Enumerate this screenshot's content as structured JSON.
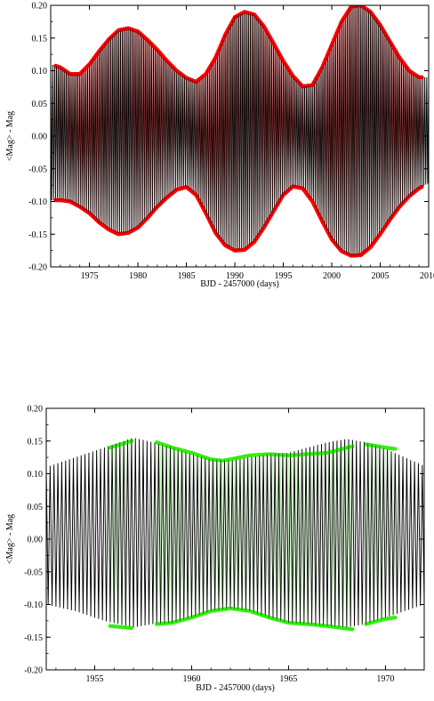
{
  "chart_data": [
    {
      "type": "scatter",
      "xlabel": "BJD - 2457000 (days)",
      "ylabel": "<Mag> - Mag",
      "xlim": [
        1971,
        2010
      ],
      "ylim": [
        -0.2,
        0.2
      ],
      "x_ticks": [
        1975,
        1980,
        1985,
        1990,
        1995,
        2000,
        2005,
        2010
      ],
      "x_tick_labels": [
        "1975",
        "1980",
        "1985",
        "1990",
        "1995",
        "2000",
        "2005",
        "2010"
      ],
      "y_ticks": [
        -0.2,
        -0.15,
        -0.1,
        -0.05,
        0.0,
        0.05,
        0.1,
        0.15,
        0.2
      ],
      "y_tick_labels": [
        "-0.20",
        "-0.15",
        "-0.10",
        "-0.05",
        "0.00",
        "0.05",
        "0.10",
        "0.15",
        "0.20"
      ],
      "grid": false,
      "series": [
        {
          "role": "model",
          "color": "#000000",
          "cycle_days": 0.2,
          "span": [
            1971,
            2010
          ],
          "upper_envelope": {
            "x": [
              1971,
              1972,
              1973,
              1974,
              1975,
              1976,
              1977,
              1978,
              1979,
              1980,
              1981,
              1982,
              1983,
              1984,
              1985,
              1986,
              1987,
              1988,
              1989,
              1990,
              1991,
              1992,
              1993,
              1994,
              1995,
              1996,
              1997,
              1998,
              1999,
              2000,
              2001,
              2002,
              2003,
              2004,
              2005,
              2006,
              2007,
              2008,
              2009,
              2010
            ],
            "y": [
              0.11,
              0.105,
              0.095,
              0.095,
              0.11,
              0.13,
              0.148,
              0.162,
              0.165,
              0.16,
              0.147,
              0.132,
              0.115,
              0.1,
              0.089,
              0.083,
              0.095,
              0.12,
              0.155,
              0.182,
              0.19,
              0.186,
              0.168,
              0.142,
              0.115,
              0.092,
              0.076,
              0.078,
              0.105,
              0.14,
              0.175,
              0.198,
              0.2,
              0.19,
              0.17,
              0.145,
              0.12,
              0.1,
              0.09,
              0.09
            ]
          },
          "lower_envelope": {
            "x": [
              1971,
              1972,
              1973,
              1974,
              1975,
              1976,
              1977,
              1978,
              1979,
              1980,
              1981,
              1982,
              1983,
              1984,
              1985,
              1986,
              1987,
              1988,
              1989,
              1990,
              1991,
              1992,
              1993,
              1994,
              1995,
              1996,
              1997,
              1998,
              1999,
              2000,
              2001,
              2002,
              2003,
              2004,
              2005,
              2006,
              2007,
              2008,
              2009,
              2010
            ],
            "y": [
              -0.098,
              -0.098,
              -0.1,
              -0.108,
              -0.118,
              -0.132,
              -0.143,
              -0.15,
              -0.148,
              -0.14,
              -0.125,
              -0.108,
              -0.094,
              -0.082,
              -0.078,
              -0.09,
              -0.118,
              -0.148,
              -0.167,
              -0.175,
              -0.174,
              -0.162,
              -0.14,
              -0.115,
              -0.09,
              -0.077,
              -0.08,
              -0.1,
              -0.13,
              -0.158,
              -0.176,
              -0.183,
              -0.182,
              -0.17,
              -0.15,
              -0.128,
              -0.108,
              -0.092,
              -0.08,
              -0.072
            ]
          }
        },
        {
          "role": "observed",
          "color": "#ff0000",
          "span": [
            1971.5,
            2009.3
          ],
          "sample_days": 0.5,
          "upper_envelope": "same as model",
          "lower_envelope": "same as model"
        }
      ]
    },
    {
      "type": "scatter",
      "xlabel": "BJD - 2457000 (days)",
      "ylabel": "<Mag> - Mag",
      "xlim": [
        1952.5,
        1972
      ],
      "ylim": [
        -0.2,
        0.2
      ],
      "x_ticks": [
        1955,
        1960,
        1965,
        1970
      ],
      "x_tick_labels": [
        "1955",
        "1960",
        "1965",
        "1970"
      ],
      "y_ticks": [
        -0.2,
        -0.15,
        -0.1,
        -0.05,
        0.0,
        0.05,
        0.1,
        0.15,
        0.2
      ],
      "y_tick_labels": [
        "-0.20",
        "-0.15",
        "-0.10",
        "-0.05",
        "0.00",
        "0.05",
        "0.10",
        "0.15",
        "0.20"
      ],
      "grid": false,
      "series": [
        {
          "role": "model",
          "color": "#000000",
          "cycle_days": 0.2,
          "span": [
            1952.5,
            1972
          ],
          "upper_envelope": {
            "x": [
              1952.5,
              1954,
              1955.5,
              1957,
              1958,
              1959,
              1960,
              1961,
              1962,
              1963,
              1964,
              1965,
              1966,
              1967,
              1968,
              1969,
              1970,
              1971,
              1972
            ],
            "y": [
              0.11,
              0.125,
              0.14,
              0.155,
              0.148,
              0.14,
              0.13,
              0.122,
              0.12,
              0.125,
              0.13,
              0.132,
              0.14,
              0.148,
              0.153,
              0.148,
              0.138,
              0.125,
              0.112
            ]
          },
          "lower_envelope": {
            "x": [
              1952.5,
              1954,
              1955.5,
              1957,
              1958,
              1959,
              1960,
              1961,
              1962,
              1963,
              1964,
              1965,
              1966,
              1967,
              1968,
              1969,
              1970,
              1971,
              1972
            ],
            "y": [
              -0.1,
              -0.11,
              -0.125,
              -0.135,
              -0.13,
              -0.128,
              -0.12,
              -0.11,
              -0.106,
              -0.11,
              -0.12,
              -0.128,
              -0.13,
              -0.133,
              -0.135,
              -0.13,
              -0.12,
              -0.11,
              -0.1
            ]
          }
        },
        {
          "role": "observed",
          "color": "#33ee11",
          "sample_days": 0.5,
          "segments": [
            [
              1955.8,
              1956.9
            ],
            [
              1958.2,
              1968.3
            ],
            [
              1969.0,
              1970.5
            ]
          ],
          "upper_envelope": {
            "x": [
              1955.8,
              1956.9,
              1958.2,
              1959,
              1960,
              1961,
              1961.6,
              1962,
              1963,
              1964,
              1965,
              1966,
              1967,
              1968.3,
              1969,
              1970,
              1970.5
            ],
            "y": [
              0.14,
              0.15,
              0.148,
              0.14,
              0.132,
              0.122,
              0.12,
              0.122,
              0.128,
              0.13,
              0.128,
              0.13,
              0.132,
              0.142,
              0.145,
              0.14,
              0.138
            ]
          },
          "lower_envelope": {
            "x": [
              1955.8,
              1956.9,
              1958.2,
              1959,
              1960,
              1961,
              1962,
              1963,
              1964,
              1965,
              1966,
              1967,
              1968.3,
              1969,
              1970,
              1970.5
            ],
            "y": [
              -0.133,
              -0.136,
              -0.13,
              -0.128,
              -0.12,
              -0.11,
              -0.106,
              -0.11,
              -0.12,
              -0.128,
              -0.13,
              -0.133,
              -0.138,
              -0.13,
              -0.122,
              -0.12
            ]
          }
        }
      ]
    }
  ]
}
